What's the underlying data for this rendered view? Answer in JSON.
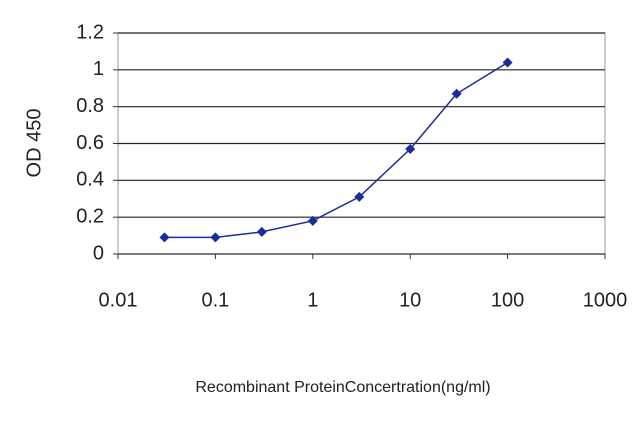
{
  "chart_data": {
    "type": "line",
    "xlabel": "Recombinant ProteinConcertration(ng/ml)",
    "ylabel": "OD 450",
    "x": [
      0.03,
      0.1,
      0.3,
      1,
      3,
      10,
      30,
      100
    ],
    "series": [
      {
        "color": "#1c2a9c",
        "values": [
          0.09,
          0.09,
          0.12,
          0.18,
          0.31,
          0.57,
          0.87,
          1.04
        ]
      }
    ],
    "xlog": true,
    "xlim": [
      0.01,
      1000
    ],
    "xticks": [
      0.01,
      0.1,
      1,
      10,
      100,
      1000
    ],
    "ylim": [
      0,
      1.2
    ],
    "yticks": [
      0,
      0.2,
      0.4,
      0.6,
      0.8,
      1,
      1.2
    ],
    "grid": true
  }
}
